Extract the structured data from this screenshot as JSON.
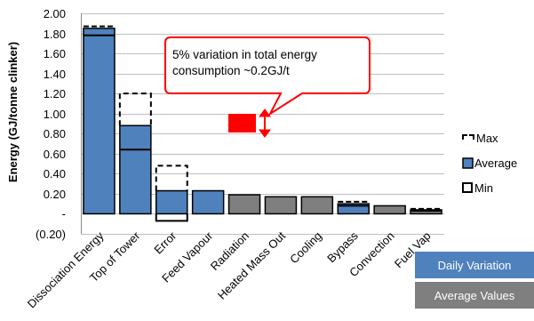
{
  "chart_data": {
    "type": "bar",
    "ylabel": "Energy (GJ/tonne clinker)",
    "ylim": [
      -0.2,
      2.0
    ],
    "ytick_labels": [
      "(0.20)",
      "-",
      "0.20",
      "0.40",
      "0.60",
      "0.80",
      "1.00",
      "1.20",
      "1.40",
      "1.60",
      "1.80",
      "2.00"
    ],
    "ytick_values": [
      -0.2,
      0,
      0.2,
      0.4,
      0.6,
      0.8,
      1.0,
      1.2,
      1.4,
      1.6,
      1.8,
      2.0
    ],
    "grid": true,
    "categories": [
      "Dissociation Energy",
      "Top of Tower",
      "Error",
      "Feed Vapour",
      "Radiation",
      "Heated Mass Out",
      "Cooling",
      "Bypass",
      "Convection",
      "Fuel Vap"
    ],
    "values": [
      1.85,
      0.88,
      0.23,
      0.23,
      0.19,
      0.17,
      0.17,
      0.1,
      0.08,
      0.04
    ],
    "bar_groups": [
      "daily",
      "daily",
      "daily",
      "daily",
      "average",
      "average",
      "average",
      "daily",
      "average",
      "average"
    ],
    "min": [
      1.78,
      0.64,
      -0.07,
      null,
      null,
      null,
      null,
      0.08,
      null,
      0.03
    ],
    "max": [
      1.87,
      1.2,
      0.48,
      null,
      null,
      null,
      null,
      0.12,
      null,
      0.05
    ],
    "legend": {
      "placement": "right",
      "entries": [
        {
          "key": "max",
          "label": "Max"
        },
        {
          "key": "average",
          "label": "Average"
        },
        {
          "key": "min",
          "label": "Min"
        }
      ]
    },
    "annotation": "5% variation in total energy consumption ~0.2GJ/t",
    "group_labels": {
      "daily": "Daily Variation",
      "average": "Average Values"
    },
    "colors": {
      "daily": "#4f81bd",
      "average": "#7f7f7f",
      "highlight": "#ff0000",
      "callout_border": "#ff0000",
      "grid": "#bfbfbf"
    }
  }
}
